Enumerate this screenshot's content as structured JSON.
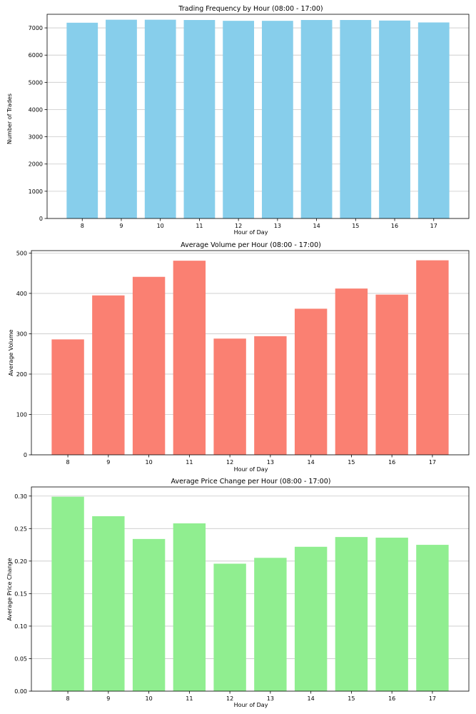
{
  "chart_data": [
    {
      "type": "bar",
      "title": "Trading Frequency by Hour (08:00 - 17:00)",
      "xlabel": "Hour of Day",
      "ylabel": "Number of Trades",
      "categories": [
        "8",
        "9",
        "10",
        "11",
        "12",
        "13",
        "14",
        "15",
        "16",
        "17"
      ],
      "values": [
        7190,
        7300,
        7300,
        7290,
        7260,
        7260,
        7290,
        7290,
        7270,
        7200
      ],
      "ylim": [
        0,
        7500
      ],
      "yticks": [
        0,
        1000,
        2000,
        3000,
        4000,
        5000,
        6000,
        7000
      ],
      "ytick_labels": [
        "0",
        "1000",
        "2000",
        "3000",
        "4000",
        "5000",
        "6000",
        "7000"
      ],
      "color": "#87ceeb",
      "grid": "y"
    },
    {
      "type": "bar",
      "title": "Average Volume per Hour (08:00 - 17:00)",
      "xlabel": "Hour of Day",
      "ylabel": "Average Volume",
      "categories": [
        "8",
        "9",
        "10",
        "11",
        "12",
        "13",
        "14",
        "15",
        "16",
        "17"
      ],
      "values": [
        286,
        395,
        441,
        481,
        288,
        294,
        362,
        412,
        397,
        482
      ],
      "ylim": [
        0,
        506
      ],
      "yticks": [
        0,
        100,
        200,
        300,
        400,
        500
      ],
      "ytick_labels": [
        "0",
        "100",
        "200",
        "300",
        "400",
        "500"
      ],
      "color": "#fa8072",
      "grid": "y"
    },
    {
      "type": "bar",
      "title": "Average Price Change per Hour (08:00 - 17:00)",
      "xlabel": "Hour of Day",
      "ylabel": "Average Price Change",
      "categories": [
        "8",
        "9",
        "10",
        "11",
        "12",
        "13",
        "14",
        "15",
        "16",
        "17"
      ],
      "values": [
        0.299,
        0.269,
        0.234,
        0.258,
        0.196,
        0.205,
        0.222,
        0.237,
        0.236,
        0.225
      ],
      "ylim": [
        0,
        0.314
      ],
      "yticks": [
        0,
        0.05,
        0.1,
        0.15,
        0.2,
        0.25,
        0.3
      ],
      "ytick_labels": [
        "0.00",
        "0.05",
        "0.10",
        "0.15",
        "0.20",
        "0.25",
        "0.30"
      ],
      "color": "#90ee90",
      "grid": "y"
    }
  ]
}
